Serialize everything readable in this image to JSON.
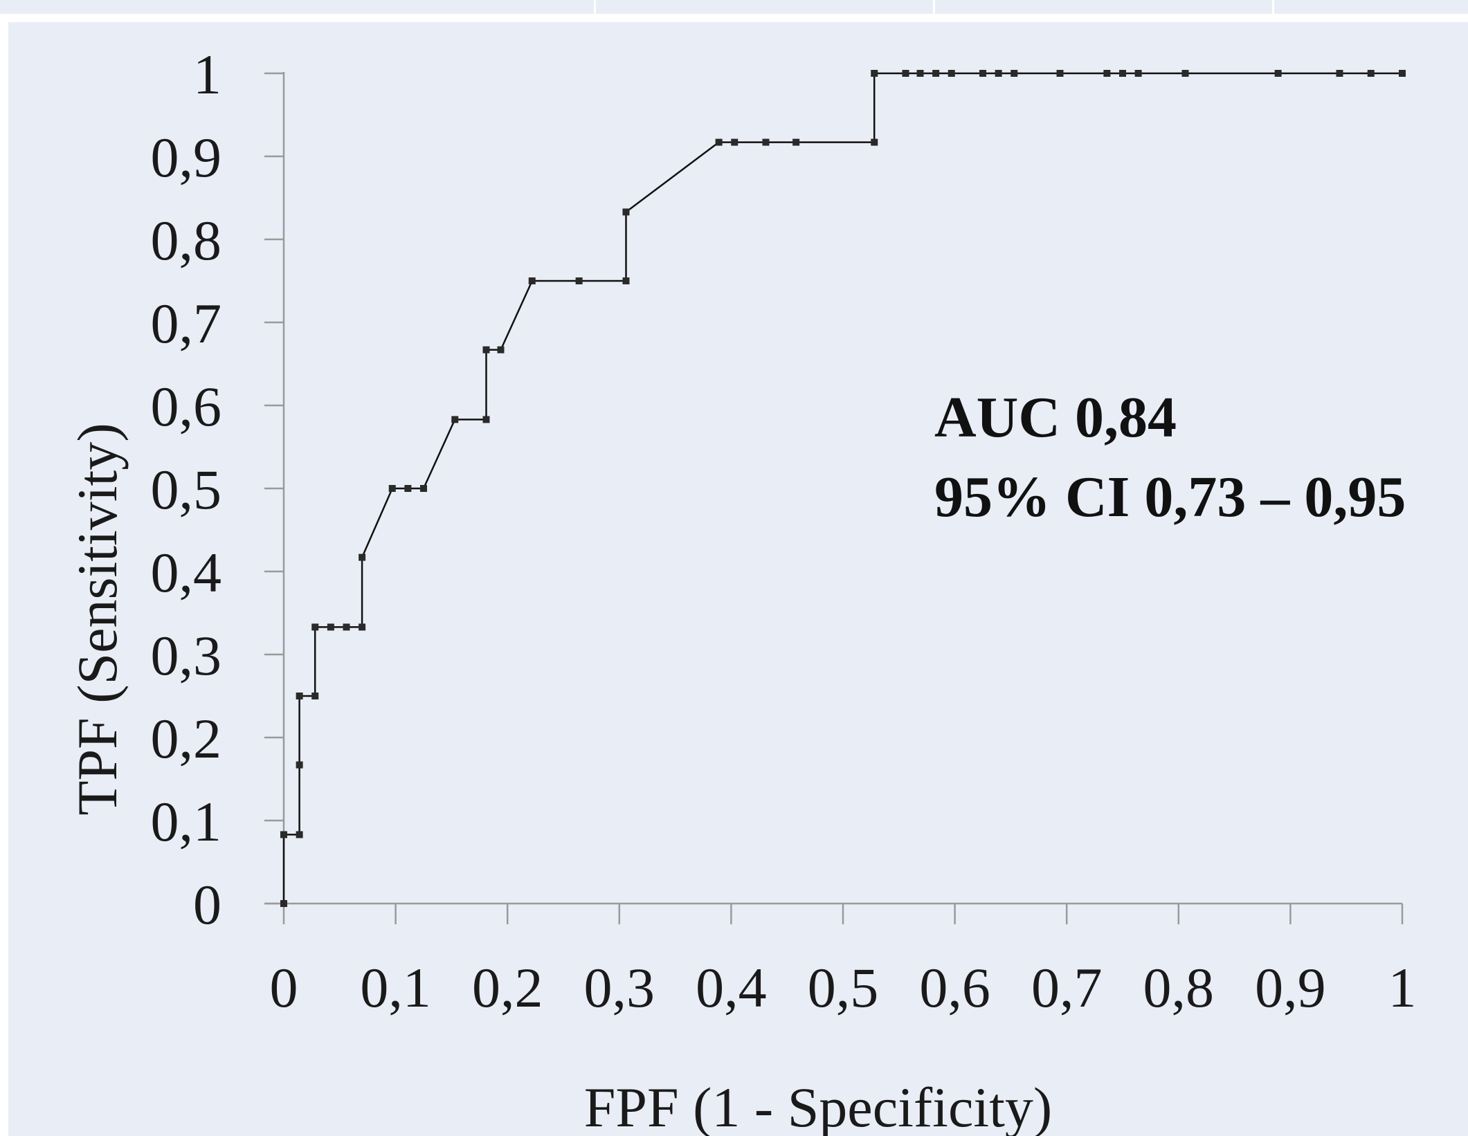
{
  "chart_data": {
    "type": "line",
    "xlabel": "FPF (1 - Specificity)",
    "ylabel": "TPF (Sensitivity)",
    "xlim": [
      0,
      1
    ],
    "ylim": [
      0,
      1
    ],
    "x_ticks": [
      "0",
      "0,1",
      "0,2",
      "0,3",
      "0,4",
      "0,5",
      "0,6",
      "0,7",
      "0,8",
      "0,9",
      "1"
    ],
    "y_ticks": [
      "0",
      "0,1",
      "0,2",
      "0,3",
      "0,4",
      "0,5",
      "0,6",
      "0,7",
      "0,8",
      "0,9",
      "1"
    ],
    "grid": false,
    "line_color": "#111111",
    "background": "#e9edf6",
    "annotations": [
      "AUC 0,84",
      "95% CI 0,73 – 0,95"
    ],
    "series": [
      {
        "x": [
          0,
          0,
          0.014,
          0.014,
          0.014,
          0.028,
          0.028,
          0.042,
          0.056,
          0.07,
          0.07,
          0.097,
          0.111,
          0.125,
          0.153,
          0.181,
          0.181,
          0.194,
          0.222,
          0.264,
          0.306,
          0.306,
          0.389,
          0.403,
          0.431,
          0.458,
          0.528,
          0.528,
          0.556,
          0.569,
          0.583,
          0.597,
          0.625,
          0.639,
          0.653,
          0.694,
          0.736,
          0.75,
          0.764,
          0.806,
          0.889,
          0.944,
          0.972,
          1
        ],
        "y": [
          0,
          0.083,
          0.083,
          0.167,
          0.25,
          0.25,
          0.333,
          0.333,
          0.333,
          0.333,
          0.417,
          0.5,
          0.5,
          0.5,
          0.583,
          0.583,
          0.667,
          0.667,
          0.75,
          0.75,
          0.75,
          0.833,
          0.917,
          0.917,
          0.917,
          0.917,
          0.917,
          1,
          1,
          1,
          1,
          1,
          1,
          1,
          1,
          1,
          1,
          1,
          1,
          1,
          1,
          1,
          1,
          1
        ]
      }
    ]
  }
}
